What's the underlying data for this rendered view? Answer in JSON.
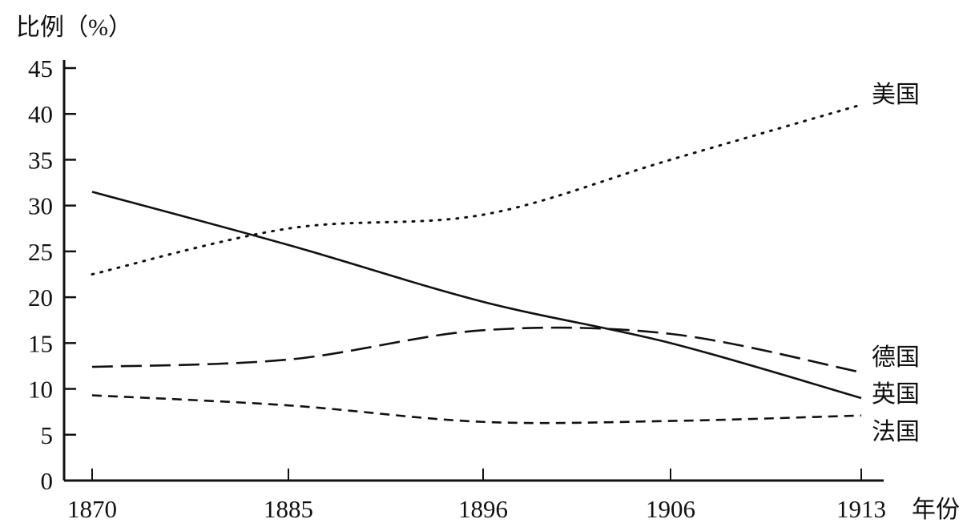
{
  "chart_data": {
    "type": "line",
    "title": "",
    "ylabel": "比例（%）",
    "xlabel": "年份",
    "categories": [
      "1870",
      "1885",
      "1896",
      "1906",
      "1913"
    ],
    "yticks": [
      "0",
      "5",
      "10",
      "15",
      "20",
      "25",
      "30",
      "35",
      "40",
      "45"
    ],
    "ylim": [
      0,
      45
    ],
    "grid": false,
    "series": [
      {
        "name": "美国",
        "style": "dotted",
        "values": [
          22.5,
          27.5,
          29,
          35,
          41
        ]
      },
      {
        "name": "德国",
        "style": "long-dash",
        "values": [
          12.4,
          13.2,
          16.4,
          16,
          11.8
        ]
      },
      {
        "name": "英国",
        "style": "solid",
        "values": [
          31.5,
          25.7,
          19.5,
          15,
          9
        ]
      },
      {
        "name": "法国",
        "style": "short-dash",
        "values": [
          9.3,
          8.2,
          6.4,
          6.5,
          7.1
        ]
      }
    ],
    "line_color": "#111111"
  }
}
